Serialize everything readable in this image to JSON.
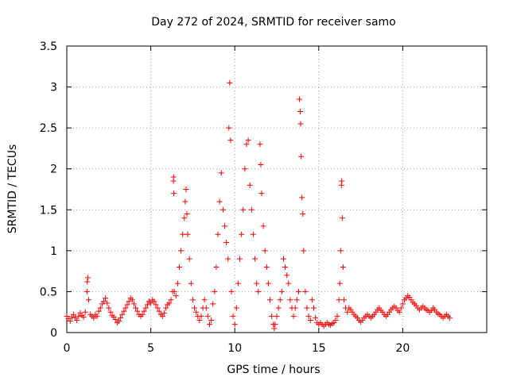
{
  "chart_data": {
    "type": "scatter",
    "title": "Day 272 of 2024, SRMTID for receiver samo",
    "xlabel": "GPS time / hours",
    "ylabel": "SRMTID / TECUs",
    "xlim": [
      0,
      25
    ],
    "ylim": [
      0,
      3.5
    ],
    "x_ticks": [
      "0",
      "5",
      "10",
      "15",
      "20"
    ],
    "y_ticks": [
      "0",
      "0.5",
      "1",
      "1.5",
      "2",
      "2.5",
      "3",
      "3.5"
    ],
    "x_tick_values": [
      0,
      5,
      10,
      15,
      20
    ],
    "y_tick_values": [
      0,
      0.5,
      1,
      1.5,
      2,
      2.5,
      3,
      3.5
    ],
    "grid": true,
    "marker": "+",
    "series": [
      {
        "name": "samo",
        "color": "#ff0000",
        "points": [
          [
            0.0,
            0.2
          ],
          [
            0.1,
            0.17
          ],
          [
            0.2,
            0.14
          ],
          [
            0.3,
            0.19
          ],
          [
            0.4,
            0.22
          ],
          [
            0.5,
            0.18
          ],
          [
            0.6,
            0.15
          ],
          [
            0.7,
            0.2
          ],
          [
            0.8,
            0.24
          ],
          [
            0.9,
            0.21
          ],
          [
            1.0,
            0.19
          ],
          [
            1.1,
            0.25
          ],
          [
            1.2,
            0.5
          ],
          [
            1.22,
            0.62
          ],
          [
            1.25,
            0.67
          ],
          [
            1.3,
            0.4
          ],
          [
            1.4,
            0.22
          ],
          [
            1.5,
            0.2
          ],
          [
            1.6,
            0.18
          ],
          [
            1.7,
            0.22
          ],
          [
            1.8,
            0.2
          ],
          [
            1.9,
            0.26
          ],
          [
            2.0,
            0.3
          ],
          [
            2.1,
            0.35
          ],
          [
            2.2,
            0.38
          ],
          [
            2.3,
            0.42
          ],
          [
            2.4,
            0.36
          ],
          [
            2.5,
            0.3
          ],
          [
            2.6,
            0.25
          ],
          [
            2.7,
            0.21
          ],
          [
            2.8,
            0.19
          ],
          [
            2.9,
            0.16
          ],
          [
            3.0,
            0.12
          ],
          [
            3.1,
            0.14
          ],
          [
            3.2,
            0.18
          ],
          [
            3.3,
            0.22
          ],
          [
            3.4,
            0.26
          ],
          [
            3.5,
            0.3
          ],
          [
            3.6,
            0.34
          ],
          [
            3.7,
            0.38
          ],
          [
            3.8,
            0.42
          ],
          [
            3.9,
            0.4
          ],
          [
            4.0,
            0.35
          ],
          [
            4.1,
            0.3
          ],
          [
            4.2,
            0.26
          ],
          [
            4.3,
            0.22
          ],
          [
            4.4,
            0.2
          ],
          [
            4.5,
            0.22
          ],
          [
            4.6,
            0.26
          ],
          [
            4.7,
            0.3
          ],
          [
            4.8,
            0.34
          ],
          [
            4.9,
            0.38
          ],
          [
            5.0,
            0.36
          ],
          [
            5.1,
            0.4
          ],
          [
            5.2,
            0.38
          ],
          [
            5.3,
            0.34
          ],
          [
            5.4,
            0.3
          ],
          [
            5.5,
            0.26
          ],
          [
            5.6,
            0.22
          ],
          [
            5.7,
            0.2
          ],
          [
            5.8,
            0.24
          ],
          [
            5.9,
            0.3
          ],
          [
            6.0,
            0.34
          ],
          [
            6.1,
            0.36
          ],
          [
            6.2,
            0.4
          ],
          [
            6.3,
            0.5
          ],
          [
            6.35,
            1.85
          ],
          [
            6.36,
            1.9
          ],
          [
            6.37,
            1.7
          ],
          [
            6.4,
            0.5
          ],
          [
            6.5,
            0.45
          ],
          [
            6.6,
            0.6
          ],
          [
            6.7,
            0.8
          ],
          [
            6.8,
            1.0
          ],
          [
            6.9,
            1.2
          ],
          [
            7.0,
            1.4
          ],
          [
            7.05,
            1.6
          ],
          [
            7.1,
            1.75
          ],
          [
            7.15,
            1.45
          ],
          [
            7.2,
            1.2
          ],
          [
            7.3,
            0.9
          ],
          [
            7.4,
            0.6
          ],
          [
            7.5,
            0.4
          ],
          [
            7.6,
            0.3
          ],
          [
            7.7,
            0.25
          ],
          [
            7.8,
            0.2
          ],
          [
            7.9,
            0.15
          ],
          [
            8.0,
            0.2
          ],
          [
            8.1,
            0.3
          ],
          [
            8.2,
            0.4
          ],
          [
            8.3,
            0.3
          ],
          [
            8.4,
            0.2
          ],
          [
            8.5,
            0.1
          ],
          [
            8.6,
            0.15
          ],
          [
            8.7,
            0.35
          ],
          [
            8.8,
            0.5
          ],
          [
            8.9,
            0.8
          ],
          [
            9.0,
            1.2
          ],
          [
            9.1,
            1.6
          ],
          [
            9.2,
            1.95
          ],
          [
            9.3,
            1.5
          ],
          [
            9.4,
            1.3
          ],
          [
            9.5,
            1.1
          ],
          [
            9.6,
            0.9
          ],
          [
            9.65,
            2.5
          ],
          [
            9.7,
            3.05
          ],
          [
            9.75,
            2.35
          ],
          [
            9.8,
            0.5
          ],
          [
            9.9,
            0.2
          ],
          [
            10.0,
            0.1
          ],
          [
            10.1,
            0.3
          ],
          [
            10.2,
            0.6
          ],
          [
            10.3,
            0.9
          ],
          [
            10.4,
            1.2
          ],
          [
            10.5,
            1.5
          ],
          [
            10.6,
            2.0
          ],
          [
            10.7,
            2.3
          ],
          [
            10.8,
            2.35
          ],
          [
            10.9,
            1.8
          ],
          [
            11.0,
            1.5
          ],
          [
            11.1,
            1.2
          ],
          [
            11.2,
            0.9
          ],
          [
            11.3,
            0.6
          ],
          [
            11.4,
            0.5
          ],
          [
            11.5,
            2.3
          ],
          [
            11.55,
            2.05
          ],
          [
            11.6,
            1.7
          ],
          [
            11.7,
            1.3
          ],
          [
            11.8,
            1.0
          ],
          [
            11.9,
            0.8
          ],
          [
            12.0,
            0.6
          ],
          [
            12.1,
            0.4
          ],
          [
            12.2,
            0.2
          ],
          [
            12.3,
            0.1
          ],
          [
            12.35,
            0.05
          ],
          [
            12.4,
            0.1
          ],
          [
            12.5,
            0.2
          ],
          [
            12.6,
            0.3
          ],
          [
            12.7,
            0.4
          ],
          [
            12.8,
            0.5
          ],
          [
            12.9,
            0.9
          ],
          [
            13.0,
            0.8
          ],
          [
            13.1,
            0.7
          ],
          [
            13.2,
            0.6
          ],
          [
            13.3,
            0.4
          ],
          [
            13.4,
            0.3
          ],
          [
            13.5,
            0.2
          ],
          [
            13.6,
            0.3
          ],
          [
            13.7,
            0.4
          ],
          [
            13.8,
            0.5
          ],
          [
            13.85,
            2.85
          ],
          [
            13.9,
            2.7
          ],
          [
            13.92,
            2.55
          ],
          [
            13.95,
            2.15
          ],
          [
            14.0,
            1.65
          ],
          [
            14.05,
            1.45
          ],
          [
            14.1,
            1.0
          ],
          [
            14.2,
            0.5
          ],
          [
            14.3,
            0.3
          ],
          [
            14.4,
            0.2
          ],
          [
            14.5,
            0.15
          ],
          [
            14.6,
            0.4
          ],
          [
            14.7,
            0.3
          ],
          [
            14.8,
            0.18
          ],
          [
            14.9,
            0.12
          ],
          [
            15.0,
            0.1
          ],
          [
            15.1,
            0.12
          ],
          [
            15.2,
            0.1
          ],
          [
            15.3,
            0.08
          ],
          [
            15.4,
            0.1
          ],
          [
            15.5,
            0.12
          ],
          [
            15.6,
            0.1
          ],
          [
            15.7,
            0.09
          ],
          [
            15.8,
            0.11
          ],
          [
            15.9,
            0.12
          ],
          [
            16.0,
            0.15
          ],
          [
            16.1,
            0.2
          ],
          [
            16.2,
            0.4
          ],
          [
            16.25,
            0.6
          ],
          [
            16.3,
            1.0
          ],
          [
            16.35,
            1.8
          ],
          [
            16.37,
            1.85
          ],
          [
            16.4,
            1.4
          ],
          [
            16.45,
            0.8
          ],
          [
            16.5,
            0.4
          ],
          [
            16.6,
            0.3
          ],
          [
            16.7,
            0.25
          ],
          [
            16.8,
            0.3
          ],
          [
            16.9,
            0.28
          ],
          [
            17.0,
            0.25
          ],
          [
            17.1,
            0.22
          ],
          [
            17.2,
            0.2
          ],
          [
            17.3,
            0.18
          ],
          [
            17.4,
            0.15
          ],
          [
            17.5,
            0.13
          ],
          [
            17.6,
            0.15
          ],
          [
            17.7,
            0.18
          ],
          [
            17.8,
            0.2
          ],
          [
            17.9,
            0.22
          ],
          [
            18.0,
            0.2
          ],
          [
            18.1,
            0.18
          ],
          [
            18.2,
            0.2
          ],
          [
            18.3,
            0.22
          ],
          [
            18.4,
            0.25
          ],
          [
            18.5,
            0.28
          ],
          [
            18.6,
            0.3
          ],
          [
            18.7,
            0.27
          ],
          [
            18.8,
            0.25
          ],
          [
            18.9,
            0.22
          ],
          [
            19.0,
            0.2
          ],
          [
            19.1,
            0.22
          ],
          [
            19.2,
            0.25
          ],
          [
            19.3,
            0.28
          ],
          [
            19.4,
            0.3
          ],
          [
            19.5,
            0.32
          ],
          [
            19.6,
            0.3
          ],
          [
            19.7,
            0.27
          ],
          [
            19.8,
            0.25
          ],
          [
            19.9,
            0.3
          ],
          [
            20.0,
            0.35
          ],
          [
            20.1,
            0.4
          ],
          [
            20.2,
            0.42
          ],
          [
            20.3,
            0.45
          ],
          [
            20.4,
            0.43
          ],
          [
            20.5,
            0.4
          ],
          [
            20.6,
            0.37
          ],
          [
            20.7,
            0.35
          ],
          [
            20.8,
            0.33
          ],
          [
            20.9,
            0.3
          ],
          [
            21.0,
            0.28
          ],
          [
            21.1,
            0.3
          ],
          [
            21.2,
            0.32
          ],
          [
            21.3,
            0.3
          ],
          [
            21.4,
            0.28
          ],
          [
            21.5,
            0.27
          ],
          [
            21.6,
            0.25
          ],
          [
            21.7,
            0.27
          ],
          [
            21.8,
            0.3
          ],
          [
            21.9,
            0.28
          ],
          [
            22.0,
            0.25
          ],
          [
            22.1,
            0.23
          ],
          [
            22.2,
            0.22
          ],
          [
            22.3,
            0.2
          ],
          [
            22.4,
            0.18
          ],
          [
            22.5,
            0.2
          ],
          [
            22.6,
            0.22
          ],
          [
            22.7,
            0.2
          ],
          [
            22.8,
            0.18
          ]
        ]
      }
    ]
  }
}
